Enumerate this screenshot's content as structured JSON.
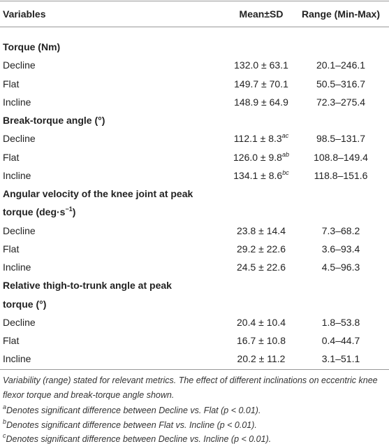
{
  "table": {
    "header": [
      "Variables",
      "Mean±SD",
      "Range (Min-Max)"
    ],
    "sections": [
      {
        "title": [
          [
            {
              "text": "Torque (Nm)"
            }
          ]
        ],
        "rows": [
          {
            "label": "Decline",
            "mean": "132.0 ± 63.1",
            "range": "20.1–246.1"
          },
          {
            "label": "Flat",
            "mean": "149.7 ± 70.1",
            "range": "50.5–316.7"
          },
          {
            "label": "Incline",
            "mean": "148.9 ± 64.9",
            "range": "72.3–275.4"
          }
        ]
      },
      {
        "title": [
          [
            {
              "text": "Break-torque angle (°)"
            }
          ]
        ],
        "rows": [
          {
            "label": "Decline",
            "mean": "112.1 ± 8.3",
            "mean_sup": "ac",
            "range": "98.5–131.7"
          },
          {
            "label": "Flat",
            "mean": "126.0 ± 9.8",
            "mean_sup": "ab",
            "range": "108.8–149.4"
          },
          {
            "label": "Incline",
            "mean": "134.1 ± 8.6",
            "mean_sup": "bc",
            "range": "118.8–151.6"
          }
        ]
      },
      {
        "title": [
          [
            {
              "text": "Angular velocity of the knee joint at peak"
            }
          ],
          [
            {
              "text": "torque (deg·s"
            },
            {
              "sup": "−1"
            },
            {
              "text": ")"
            }
          ]
        ],
        "rows": [
          {
            "label": "Decline",
            "mean": "23.8 ± 14.4",
            "range": "7.3–68.2"
          },
          {
            "label": "Flat",
            "mean": "29.2 ± 22.6",
            "range": "3.6–93.4"
          },
          {
            "label": "Incline",
            "mean": "24.5 ± 22.6",
            "range": "4.5–96.3"
          }
        ]
      },
      {
        "title": [
          [
            {
              "text": "Relative thigh-to-trunk angle at peak"
            }
          ],
          [
            {
              "text": "torque (°)"
            }
          ]
        ],
        "rows": [
          {
            "label": "Decline",
            "mean": "20.4 ± 10.4",
            "range": "1.8–53.8"
          },
          {
            "label": "Flat",
            "mean": "16.7 ± 10.8",
            "range": "0.4–44.7"
          },
          {
            "label": "Incline",
            "mean": "20.2 ± 11.2",
            "range": "3.1–51.1"
          }
        ]
      }
    ],
    "note": "Variability (range) stated for relevant metrics. The effect of different inclinations on eccentric knee flexor torque and break-torque angle shown.",
    "footnotes": [
      {
        "mark": "a",
        "text": "Denotes significant difference between Decline vs. Flat (p < 0.01)."
      },
      {
        "mark": "b",
        "text": "Denotes significant difference between Flat vs. Incline (p < 0.01)."
      },
      {
        "mark": "c",
        "text": "Denotes significant difference between Decline vs. Incline (p < 0.01)."
      }
    ]
  }
}
